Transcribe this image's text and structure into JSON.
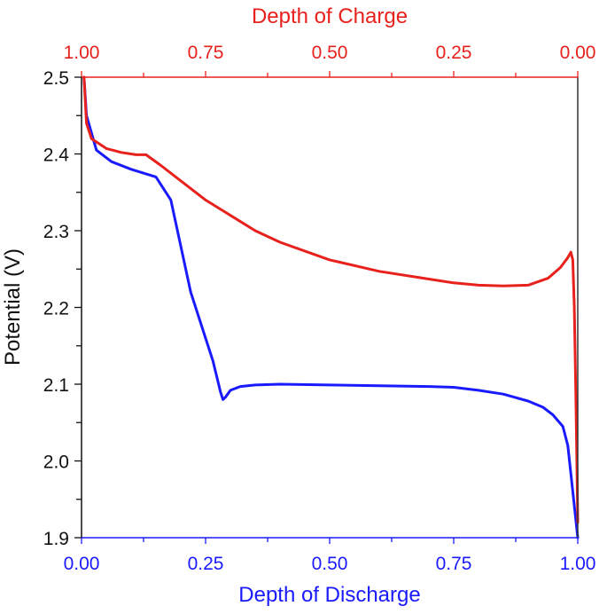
{
  "chart_data": {
    "type": "line",
    "title": "",
    "xlabel": "Depth of Discharge",
    "x2label": "Depth of Charge",
    "ylabel": "Potential (V)",
    "xlim": [
      0.0,
      1.0
    ],
    "x2lim": [
      1.0,
      0.0
    ],
    "ylim": [
      1.9,
      2.5
    ],
    "x_ticks": [
      "0.00",
      "0.25",
      "0.50",
      "0.75",
      "1.00"
    ],
    "x2_ticks": [
      "1.00",
      "0.75",
      "0.50",
      "0.25",
      "0.00"
    ],
    "y_ticks": [
      "1.9",
      "2.0",
      "2.1",
      "2.2",
      "2.3",
      "2.4",
      "2.5"
    ],
    "grid": false,
    "legend": null,
    "colors": {
      "discharge": "#1a1aff",
      "charge": "#e8211d",
      "axis_y": "#111111"
    },
    "series": [
      {
        "name": "Discharge",
        "axis": "bottom",
        "color": "#1a1aff",
        "x": [
          0.005,
          0.01,
          0.03,
          0.06,
          0.1,
          0.15,
          0.18,
          0.2,
          0.22,
          0.245,
          0.265,
          0.28,
          0.285,
          0.29,
          0.3,
          0.32,
          0.35,
          0.4,
          0.5,
          0.6,
          0.7,
          0.75,
          0.8,
          0.85,
          0.9,
          0.93,
          0.95,
          0.97,
          0.98,
          0.99,
          1.0
        ],
        "y": [
          2.5,
          2.45,
          2.405,
          2.39,
          2.38,
          2.37,
          2.34,
          2.28,
          2.22,
          2.17,
          2.13,
          2.09,
          2.08,
          2.083,
          2.092,
          2.097,
          2.099,
          2.1,
          2.099,
          2.098,
          2.097,
          2.096,
          2.092,
          2.087,
          2.078,
          2.07,
          2.06,
          2.045,
          2.02,
          1.96,
          1.9
        ]
      },
      {
        "name": "Charge",
        "axis": "top",
        "color": "#e8211d",
        "depth_of_discharge_equivalent": [
          0.005,
          0.01,
          0.02,
          0.05,
          0.08,
          0.11,
          0.13,
          0.16,
          0.2,
          0.25,
          0.3,
          0.35,
          0.4,
          0.5,
          0.6,
          0.7,
          0.75,
          0.8,
          0.85,
          0.9,
          0.94,
          0.965,
          0.98,
          0.986,
          0.99,
          0.993,
          0.996,
          1.0
        ],
        "x": [
          0.995,
          0.99,
          0.98,
          0.95,
          0.92,
          0.89,
          0.87,
          0.84,
          0.8,
          0.75,
          0.7,
          0.65,
          0.6,
          0.5,
          0.4,
          0.3,
          0.25,
          0.2,
          0.15,
          0.1,
          0.06,
          0.035,
          0.02,
          0.014,
          0.01,
          0.007,
          0.004,
          0.0
        ],
        "y": [
          2.5,
          2.44,
          2.42,
          2.407,
          2.402,
          2.399,
          2.399,
          2.385,
          2.365,
          2.34,
          2.32,
          2.3,
          2.285,
          2.262,
          2.247,
          2.237,
          2.232,
          2.229,
          2.228,
          2.229,
          2.238,
          2.252,
          2.265,
          2.272,
          2.262,
          2.2,
          2.09,
          1.92
        ]
      }
    ]
  }
}
